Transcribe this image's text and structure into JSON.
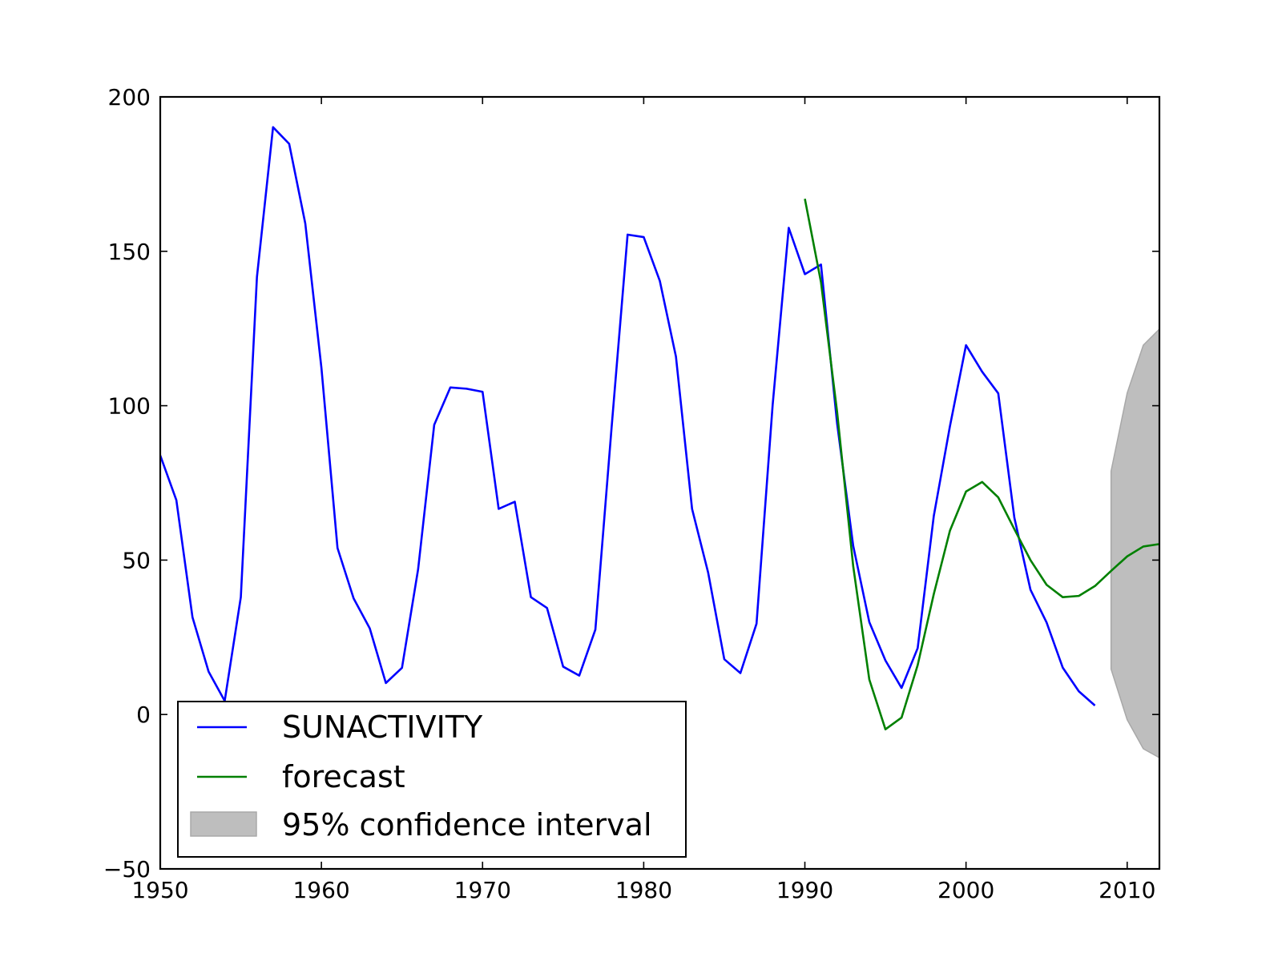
{
  "chart_data": {
    "type": "line",
    "title": "",
    "xlabel": "",
    "ylabel": "",
    "xlim": [
      1950,
      2012
    ],
    "ylim": [
      -50,
      200
    ],
    "x_ticks": [
      1950,
      1960,
      1970,
      1980,
      1990,
      2000,
      2010
    ],
    "x_tick_labels": [
      "1950",
      "1960",
      "1970",
      "1980",
      "1990",
      "2000",
      "2010"
    ],
    "y_ticks": [
      -50,
      0,
      50,
      100,
      150,
      200
    ],
    "y_tick_labels": [
      "−50",
      "0",
      "50",
      "100",
      "150",
      "200"
    ],
    "grid": false,
    "legend_position": "lower-left",
    "series": [
      {
        "name": "SUNACTIVITY",
        "color": "#0000ff",
        "kind": "line",
        "x": [
          1950,
          1951,
          1952,
          1953,
          1954,
          1955,
          1956,
          1957,
          1958,
          1959,
          1960,
          1961,
          1962,
          1963,
          1964,
          1965,
          1966,
          1967,
          1968,
          1969,
          1970,
          1971,
          1972,
          1973,
          1974,
          1975,
          1976,
          1977,
          1978,
          1979,
          1980,
          1981,
          1982,
          1983,
          1984,
          1985,
          1986,
          1987,
          1988,
          1989,
          1990,
          1991,
          1992,
          1993,
          1994,
          1995,
          1996,
          1997,
          1998,
          1999,
          2000,
          2001,
          2002,
          2003,
          2004,
          2005,
          2006,
          2007,
          2008
        ],
        "y": [
          83.9,
          69.4,
          31.5,
          13.9,
          4.4,
          38.0,
          141.7,
          190.2,
          184.8,
          159.0,
          112.3,
          53.9,
          37.6,
          27.9,
          10.2,
          15.1,
          47.0,
          93.8,
          105.9,
          105.5,
          104.5,
          66.6,
          68.9,
          38.0,
          34.5,
          15.5,
          12.6,
          27.5,
          92.5,
          155.4,
          154.6,
          140.4,
          115.9,
          66.6,
          45.9,
          17.9,
          13.4,
          29.4,
          100.2,
          157.6,
          142.6,
          145.7,
          94.3,
          54.6,
          29.9,
          17.5,
          8.6,
          21.5,
          64.3,
          93.3,
          119.6,
          111.0,
          104.0,
          63.7,
          40.4,
          29.8,
          15.2,
          7.5,
          2.9
        ]
      },
      {
        "name": "forecast",
        "color": "#008000",
        "kind": "line",
        "x": [
          1990,
          1991,
          1992,
          1993,
          1994,
          1995,
          1996,
          1997,
          1998,
          1999,
          2000,
          2001,
          2002,
          2003,
          2004,
          2005,
          2006,
          2007,
          2008,
          2009,
          2010,
          2011,
          2012
        ],
        "y": [
          167.0,
          140.0,
          98.0,
          48.0,
          11.3,
          -4.8,
          -1.0,
          16.0,
          39.0,
          59.5,
          72.2,
          75.3,
          70.3,
          60.0,
          50.0,
          42.0,
          38.0,
          38.4,
          41.6,
          46.5,
          51.2,
          54.4,
          55.2
        ]
      },
      {
        "name": "95% confidence interval",
        "color": "#bebebe",
        "kind": "band",
        "x": [
          2009,
          2010,
          2011,
          2012
        ],
        "lower": [
          14.7,
          -1.7,
          -11.1,
          -14.0
        ],
        "upper": [
          78.8,
          104.1,
          119.6,
          124.8
        ]
      }
    ]
  }
}
